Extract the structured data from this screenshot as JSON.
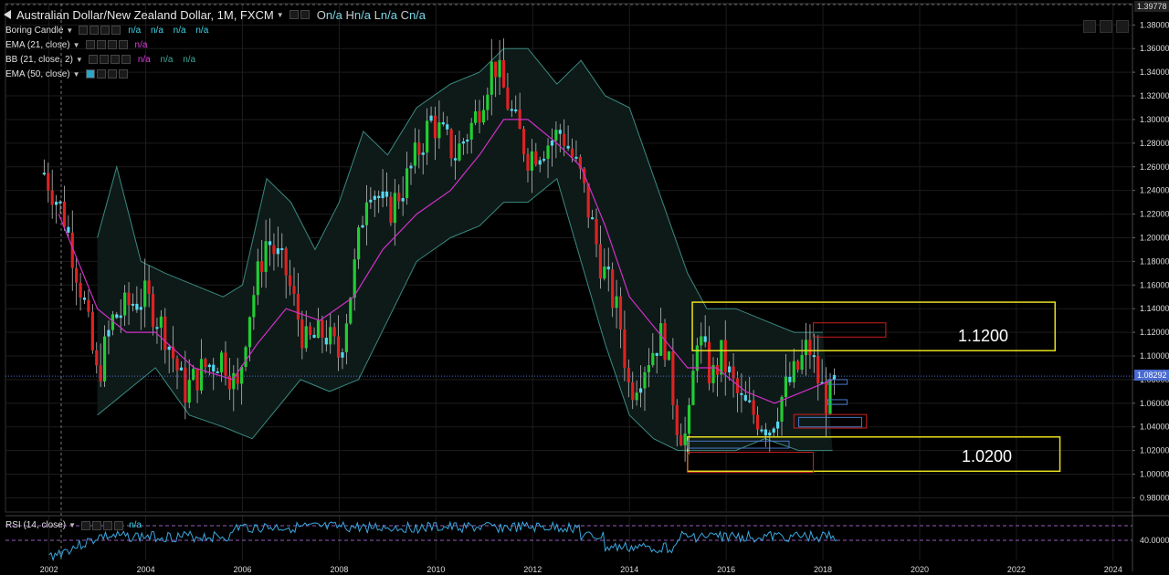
{
  "header": {
    "symbol_title": "Australian Dollar/New Zealand Dollar, 1M, FXCM",
    "ohlc": [
      {
        "k": "O",
        "v": "n/a"
      },
      {
        "k": "H",
        "v": "n/a"
      },
      {
        "k": "L",
        "v": "n/a"
      },
      {
        "k": "C",
        "v": "n/a"
      }
    ]
  },
  "indicators": [
    {
      "label": "Boring Candle",
      "values": [
        "n/a",
        "n/a",
        "n/a",
        "n/a"
      ],
      "color": "cyan"
    },
    {
      "label": "EMA (21, close)",
      "values": [
        "n/a"
      ],
      "color": "mag"
    },
    {
      "label": "BB (21, close, 2)",
      "values": [
        "n/a",
        "n/a",
        "n/a"
      ],
      "color": "mixed"
    },
    {
      "label": "EMA (50, close)",
      "values": [],
      "color": "none"
    }
  ],
  "rsi": {
    "label": "RSI (14, close)",
    "value": "n/a",
    "axis_label": "40.0000"
  },
  "price_tags": {
    "top": "1.39778",
    "current": "1.08292"
  },
  "zones": {
    "upper_label": "1.1200",
    "lower_label": "1.0200"
  },
  "colors": {
    "background": "#000000",
    "bull": "#22cc33",
    "bear": "#dd2222",
    "doji_cyan": "#55d8f0",
    "ema21": "#d030c8",
    "bb": "#3a8a80",
    "zone_yellow": "#e8e020",
    "zone_red": "#cc2020",
    "zone_blue": "#4a78c8",
    "rsi_line": "#3aa8e0",
    "current_price": "#4a6bd0"
  },
  "chart_data": {
    "type": "candlestick",
    "title": "Australian Dollar/New Zealand Dollar, 1M, FXCM",
    "x_ticks": [
      "2002",
      "2004",
      "2006",
      "2008",
      "2010",
      "2012",
      "2014",
      "2016",
      "2018",
      "2020",
      "2022",
      "2024"
    ],
    "y_ticks": [
      "1.38000",
      "1.36000",
      "1.34000",
      "1.32000",
      "1.30000",
      "1.28000",
      "1.26000",
      "1.24000",
      "1.22000",
      "1.20000",
      "1.18000",
      "1.16000",
      "1.14000",
      "1.12000",
      "1.10000",
      "1.08000",
      "1.06000",
      "1.04000",
      "1.02000",
      "1.00000",
      "0.98000"
    ],
    "ylim": [
      0.968,
      1.398
    ],
    "xlim": [
      2001.1,
      2024.4
    ],
    "price_path": [
      [
        2001.9,
        1.255
      ],
      [
        2002.3,
        1.22
      ],
      [
        2002.7,
        1.15
      ],
      [
        2003.0,
        1.08
      ],
      [
        2003.3,
        1.13
      ],
      [
        2003.7,
        1.145
      ],
      [
        2004.0,
        1.15
      ],
      [
        2004.4,
        1.12
      ],
      [
        2004.8,
        1.07
      ],
      [
        2005.2,
        1.09
      ],
      [
        2005.6,
        1.1
      ],
      [
        2005.9,
        1.07
      ],
      [
        2006.1,
        1.13
      ],
      [
        2006.5,
        1.2
      ],
      [
        2006.9,
        1.17
      ],
      [
        2007.3,
        1.11
      ],
      [
        2007.7,
        1.12
      ],
      [
        2008.0,
        1.1
      ],
      [
        2008.3,
        1.17
      ],
      [
        2008.6,
        1.25
      ],
      [
        2009.0,
        1.22
      ],
      [
        2009.4,
        1.25
      ],
      [
        2009.9,
        1.3
      ],
      [
        2010.4,
        1.27
      ],
      [
        2010.8,
        1.3
      ],
      [
        2011.2,
        1.35
      ],
      [
        2011.6,
        1.3
      ],
      [
        2011.9,
        1.27
      ],
      [
        2012.3,
        1.28
      ],
      [
        2012.6,
        1.29
      ],
      [
        2013.0,
        1.25
      ],
      [
        2013.4,
        1.18
      ],
      [
        2013.8,
        1.13
      ],
      [
        2014.0,
        1.07
      ],
      [
        2014.4,
        1.1
      ],
      [
        2014.7,
        1.12
      ],
      [
        2015.0,
        1.04
      ],
      [
        2015.2,
        1.03
      ],
      [
        2015.4,
        1.12
      ],
      [
        2015.7,
        1.08
      ],
      [
        2015.9,
        1.1
      ],
      [
        2016.3,
        1.06
      ],
      [
        2016.6,
        1.05
      ],
      [
        2016.9,
        1.04
      ],
      [
        2017.2,
        1.07
      ],
      [
        2017.5,
        1.09
      ],
      [
        2017.7,
        1.11
      ],
      [
        2017.9,
        1.08
      ],
      [
        2018.1,
        1.06
      ],
      [
        2018.3,
        1.083
      ]
    ],
    "ema21_path": [
      [
        2002.2,
        1.22
      ],
      [
        2003.0,
        1.14
      ],
      [
        2003.6,
        1.12
      ],
      [
        2004.2,
        1.12
      ],
      [
        2005.0,
        1.09
      ],
      [
        2005.8,
        1.08
      ],
      [
        2006.3,
        1.11
      ],
      [
        2006.9,
        1.14
      ],
      [
        2007.6,
        1.13
      ],
      [
        2008.3,
        1.15
      ],
      [
        2008.9,
        1.19
      ],
      [
        2009.6,
        1.22
      ],
      [
        2010.3,
        1.24
      ],
      [
        2010.9,
        1.27
      ],
      [
        2011.4,
        1.3
      ],
      [
        2011.9,
        1.3
      ],
      [
        2012.5,
        1.28
      ],
      [
        2013.0,
        1.26
      ],
      [
        2013.5,
        1.21
      ],
      [
        2014.0,
        1.15
      ],
      [
        2014.6,
        1.12
      ],
      [
        2015.2,
        1.09
      ],
      [
        2015.8,
        1.09
      ],
      [
        2016.4,
        1.07
      ],
      [
        2017.0,
        1.06
      ],
      [
        2017.6,
        1.07
      ],
      [
        2018.2,
        1.08
      ]
    ],
    "bb_upper": [
      [
        2003.0,
        1.2
      ],
      [
        2003.4,
        1.26
      ],
      [
        2003.9,
        1.18
      ],
      [
        2004.4,
        1.17
      ],
      [
        2005.0,
        1.16
      ],
      [
        2005.6,
        1.15
      ],
      [
        2006.0,
        1.16
      ],
      [
        2006.5,
        1.25
      ],
      [
        2007.0,
        1.23
      ],
      [
        2007.5,
        1.19
      ],
      [
        2008.0,
        1.23
      ],
      [
        2008.5,
        1.29
      ],
      [
        2009.0,
        1.27
      ],
      [
        2009.6,
        1.31
      ],
      [
        2010.3,
        1.33
      ],
      [
        2010.9,
        1.34
      ],
      [
        2011.4,
        1.36
      ],
      [
        2011.9,
        1.36
      ],
      [
        2012.5,
        1.33
      ],
      [
        2013.0,
        1.35
      ],
      [
        2013.5,
        1.32
      ],
      [
        2014.0,
        1.31
      ],
      [
        2014.6,
        1.24
      ],
      [
        2015.2,
        1.17
      ],
      [
        2015.6,
        1.14
      ],
      [
        2016.2,
        1.14
      ],
      [
        2016.8,
        1.13
      ],
      [
        2017.4,
        1.12
      ],
      [
        2018.0,
        1.12
      ]
    ],
    "bb_lower": [
      [
        2003.0,
        1.05
      ],
      [
        2003.6,
        1.07
      ],
      [
        2004.2,
        1.09
      ],
      [
        2004.9,
        1.05
      ],
      [
        2005.6,
        1.04
      ],
      [
        2006.2,
        1.03
      ],
      [
        2006.6,
        1.05
      ],
      [
        2007.2,
        1.08
      ],
      [
        2007.8,
        1.07
      ],
      [
        2008.4,
        1.08
      ],
      [
        2009.0,
        1.13
      ],
      [
        2009.6,
        1.18
      ],
      [
        2010.3,
        1.2
      ],
      [
        2010.9,
        1.21
      ],
      [
        2011.4,
        1.23
      ],
      [
        2011.9,
        1.23
      ],
      [
        2012.5,
        1.25
      ],
      [
        2013.0,
        1.18
      ],
      [
        2013.5,
        1.11
      ],
      [
        2014.0,
        1.05
      ],
      [
        2014.5,
        1.03
      ],
      [
        2015.0,
        1.02
      ],
      [
        2015.5,
        1.02
      ],
      [
        2016.2,
        1.02
      ],
      [
        2016.8,
        1.03
      ],
      [
        2017.5,
        1.02
      ],
      [
        2018.2,
        1.02
      ]
    ],
    "current_price": 1.08292,
    "zones": [
      {
        "kind": "yellow",
        "x": [
          2015.3,
          2022.8
        ],
        "y": [
          1.1045,
          1.1455
        ]
      },
      {
        "kind": "yellow",
        "x": [
          2015.2,
          2022.9
        ],
        "y": [
          1.0025,
          1.0315
        ]
      },
      {
        "kind": "red",
        "x": [
          2017.8,
          2019.3
        ],
        "y": [
          1.116,
          1.128
        ]
      },
      {
        "kind": "red",
        "x": [
          2017.4,
          2018.9
        ],
        "y": [
          1.039,
          1.0505
        ]
      },
      {
        "kind": "red",
        "x": [
          2015.2,
          2017.8
        ],
        "y": [
          1.0015,
          1.0185
        ]
      },
      {
        "kind": "blue",
        "x": [
          2017.5,
          2018.8
        ],
        "y": [
          1.04,
          1.048
        ]
      },
      {
        "kind": "blue",
        "x": [
          2015.2,
          2017.3
        ],
        "y": [
          1.022,
          1.028
        ]
      },
      {
        "kind": "blue",
        "x": [
          2018.1,
          2018.5
        ],
        "y": [
          1.059,
          1.063
        ]
      },
      {
        "kind": "blue",
        "x": [
          2018.1,
          2018.5
        ],
        "y": [
          1.076,
          1.08
        ]
      }
    ]
  }
}
